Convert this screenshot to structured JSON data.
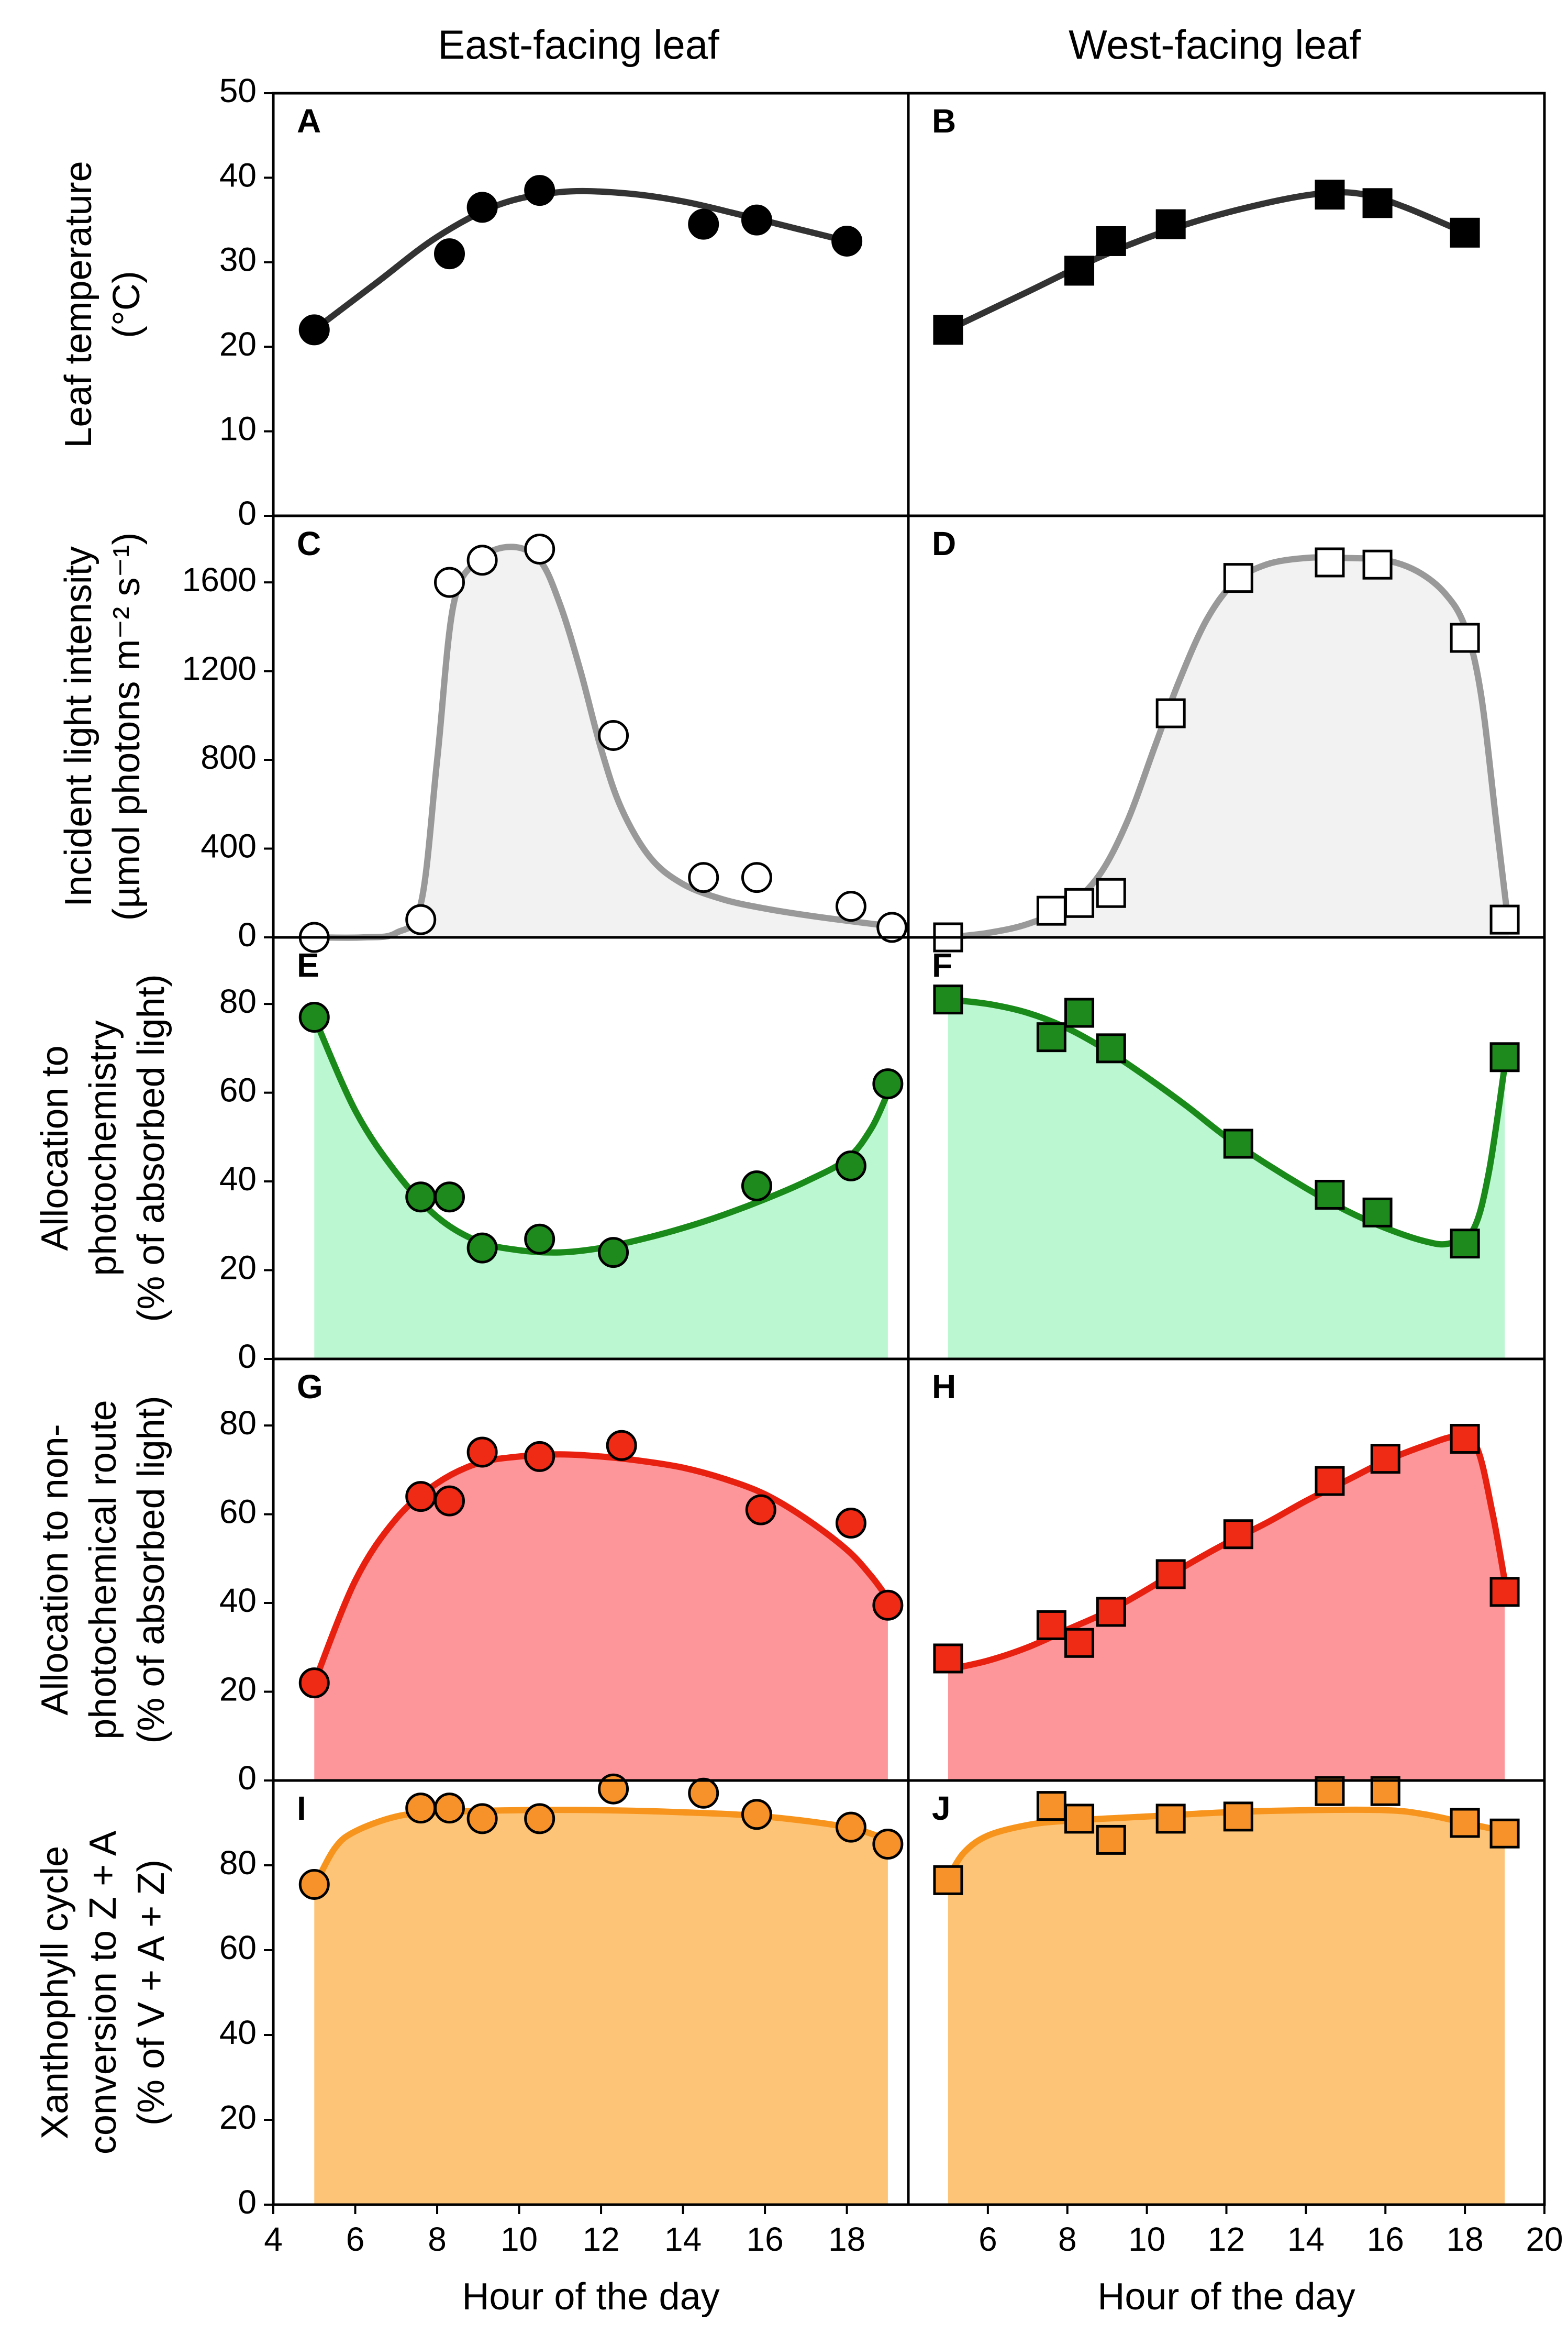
{
  "figure": {
    "col_titles": [
      "East-facing leaf",
      "West-facing leaf"
    ],
    "x_axis_label": "Hour of the day",
    "x_ticks_left": [
      "4",
      "6",
      "8",
      "10",
      "12",
      "14",
      "16",
      "18"
    ],
    "x_ticks_right": [
      "6",
      "8",
      "10",
      "12",
      "14",
      "16",
      "18",
      "20"
    ],
    "row_labels": [
      [
        "Leaf temperature",
        "(°C)"
      ],
      [
        "Incident light intensity",
        "(µmol photons m⁻² s⁻¹)"
      ],
      [
        "Allocation to",
        "photochemistry",
        "(% of absorbed light)"
      ],
      [
        "Allocation to non-",
        "photochemical route",
        "(% of absorbed light)"
      ],
      [
        "Xanthophyll cycle",
        "conversion to Z + A",
        "(% of V + A + Z)"
      ]
    ],
    "y_ticks": [
      [
        "0",
        "10",
        "20",
        "30",
        "40",
        "50"
      ],
      [
        "0",
        "400",
        "800",
        "1200",
        "1600"
      ],
      [
        "0",
        "20",
        "40",
        "60",
        "80"
      ],
      [
        "0",
        "20",
        "40",
        "60",
        "80"
      ],
      [
        "0",
        "20",
        "40",
        "60",
        "80"
      ]
    ]
  },
  "chart_data": [
    {
      "panel": "A",
      "type": "scatter",
      "column": "East-facing leaf",
      "title": "Leaf temperature (°C)",
      "xlabel": "Hour of the day",
      "ylabel": "Leaf temperature (°C)",
      "xlim": [
        4,
        19.5
      ],
      "ylim": [
        0,
        50
      ],
      "marker": "circle",
      "marker_color": "#000000",
      "line_color": "#333333",
      "fill": null,
      "x": [
        5.0,
        8.3,
        9.1,
        10.5,
        14.5,
        15.8,
        18.0
      ],
      "y": [
        22,
        31,
        36.5,
        38.5,
        34.5,
        35,
        32.5
      ],
      "fit_x": [
        5.0,
        6.5,
        8.0,
        9.5,
        11.0,
        12.5,
        14.0,
        15.5,
        17.0,
        18.0
      ],
      "fit_y": [
        22,
        27.5,
        33,
        36.8,
        38.3,
        38.2,
        37.2,
        35.5,
        33.7,
        32.5
      ]
    },
    {
      "panel": "B",
      "type": "scatter",
      "column": "West-facing leaf",
      "title": "Leaf temperature (°C)",
      "xlabel": "Hour of the day",
      "ylabel": "Leaf temperature (°C)",
      "xlim": [
        4,
        20
      ],
      "ylim": [
        0,
        50
      ],
      "marker": "square",
      "marker_color": "#000000",
      "line_color": "#333333",
      "fill": null,
      "x": [
        5.0,
        8.3,
        9.1,
        10.6,
        14.6,
        15.8,
        18.0
      ],
      "y": [
        22,
        29,
        32.5,
        34.5,
        38,
        37,
        33.5
      ],
      "fit_x": [
        5.0,
        7.0,
        9.0,
        11.0,
        13.0,
        14.5,
        15.5,
        16.5,
        18.0
      ],
      "fit_y": [
        22,
        26.5,
        31,
        34.5,
        37,
        38.2,
        38,
        36.5,
        33.5
      ]
    },
    {
      "panel": "C",
      "type": "area",
      "column": "East-facing leaf",
      "title": "Incident light intensity (µmol photons m-2 s-1)",
      "xlabel": "Hour of the day",
      "ylabel": "Incident light intensity",
      "xlim": [
        4,
        19.5
      ],
      "ylim": [
        0,
        1900
      ],
      "marker": "circle",
      "marker_color": "#ffffff",
      "line_color": "#999999",
      "fill": "#f2f2f2",
      "x": [
        5.0,
        7.6,
        8.3,
        9.1,
        10.5,
        12.3,
        14.5,
        15.8,
        18.1,
        19.1
      ],
      "y": [
        0,
        80,
        1600,
        1700,
        1750,
        910,
        270,
        270,
        140,
        45
      ],
      "fit_x": [
        5.0,
        6.2,
        7.0,
        7.6,
        8.0,
        8.4,
        9.0,
        9.8,
        10.5,
        11.0,
        11.5,
        12.0,
        12.5,
        13.2,
        14.0,
        15.0,
        16.0,
        17.0,
        18.0,
        19.1
      ],
      "fit_y": [
        0,
        0,
        20,
        150,
        800,
        1500,
        1700,
        1760,
        1700,
        1500,
        1200,
        850,
        580,
        360,
        240,
        170,
        130,
        100,
        75,
        50
      ]
    },
    {
      "panel": "D",
      "type": "area",
      "column": "West-facing leaf",
      "title": "Incident light intensity (µmol photons m-2 s-1)",
      "xlabel": "Hour of the day",
      "ylabel": "Incident light intensity",
      "xlim": [
        4,
        20
      ],
      "ylim": [
        0,
        1900
      ],
      "marker": "square",
      "marker_color": "#ffffff",
      "line_color": "#999999",
      "fill": "#f2f2f2",
      "x": [
        5.0,
        7.6,
        8.3,
        9.1,
        10.6,
        12.3,
        14.6,
        15.8,
        18.0,
        19.0
      ],
      "y": [
        0,
        120,
        155,
        200,
        1010,
        1620,
        1690,
        1680,
        1350,
        80
      ],
      "fit_x": [
        5.0,
        6.0,
        7.0,
        8.0,
        8.8,
        9.5,
        10.2,
        10.8,
        11.5,
        12.2,
        13.0,
        14.0,
        15.0,
        16.0,
        16.8,
        17.5,
        18.0,
        18.4,
        18.8,
        19.1
      ],
      "fit_y": [
        0,
        20,
        60,
        140,
        280,
        520,
        860,
        1150,
        1430,
        1600,
        1680,
        1710,
        1710,
        1700,
        1650,
        1550,
        1400,
        1100,
        500,
        50
      ]
    },
    {
      "panel": "E",
      "type": "area",
      "column": "East-facing leaf",
      "title": "Allocation to photochemistry (% of absorbed light)",
      "xlabel": "Hour of the day",
      "ylabel": "Allocation to photochemistry (%)",
      "xlim": [
        4,
        19.5
      ],
      "ylim": [
        0,
        95
      ],
      "marker": "circle",
      "marker_color": "#1e8a1e",
      "line_color": "#1a8a1a",
      "fill": "#bbf7d0",
      "x": [
        5.0,
        7.6,
        8.3,
        9.1,
        10.5,
        12.3,
        15.8,
        18.1,
        19.0
      ],
      "y": [
        77,
        36.5,
        36.5,
        25,
        27,
        24,
        39,
        43.5,
        62
      ],
      "fit_x": [
        5.0,
        6.0,
        7.0,
        8.0,
        9.0,
        10.0,
        11.0,
        12.0,
        13.0,
        14.0,
        15.0,
        16.0,
        17.0,
        18.0,
        18.6,
        19.0
      ],
      "fit_y": [
        77,
        56,
        42,
        32,
        26.5,
        24.5,
        24,
        25,
        27,
        29.5,
        32.5,
        36,
        40,
        45,
        52,
        60
      ]
    },
    {
      "panel": "F",
      "type": "area",
      "column": "West-facing leaf",
      "title": "Allocation to photochemistry (% of absorbed light)",
      "xlabel": "Hour of the day",
      "ylabel": "Allocation to photochemistry (%)",
      "xlim": [
        4,
        20
      ],
      "ylim": [
        0,
        95
      ],
      "marker": "square",
      "marker_color": "#1e8a1e",
      "line_color": "#1a8a1a",
      "fill": "#bbf7d0",
      "x": [
        5.0,
        7.6,
        8.3,
        9.1,
        12.3,
        14.6,
        15.8,
        18.0,
        19.0
      ],
      "y": [
        81,
        72.5,
        78,
        70,
        48.5,
        37,
        33,
        26,
        68
      ],
      "fit_x": [
        5.0,
        6.0,
        7.0,
        8.0,
        9.0,
        10.0,
        11.0,
        12.0,
        13.0,
        14.0,
        15.0,
        16.0,
        17.0,
        17.6,
        18.2,
        18.6,
        19.0
      ],
      "fit_y": [
        81,
        80,
        78,
        74.5,
        69.5,
        63.5,
        57,
        50,
        44,
        38.5,
        33.5,
        29.5,
        26.5,
        26,
        29,
        42,
        66
      ]
    },
    {
      "panel": "G",
      "type": "area",
      "column": "East-facing leaf",
      "title": "Allocation to non-photochemical route (% of absorbed light)",
      "xlabel": "Hour of the day",
      "ylabel": "Allocation to non-photochemical route (%)",
      "xlim": [
        4,
        19.5
      ],
      "ylim": [
        0,
        95
      ],
      "marker": "circle",
      "marker_color": "#ef2a15",
      "line_color": "#e8200f",
      "fill": "#fd969a",
      "x": [
        5.0,
        7.6,
        8.3,
        9.1,
        10.5,
        12.5,
        15.9,
        18.1,
        19.0
      ],
      "y": [
        22,
        64,
        63,
        74,
        73,
        75.5,
        61,
        58,
        39.5
      ],
      "fit_x": [
        5.0,
        6.0,
        7.0,
        8.0,
        9.0,
        10.0,
        11.0,
        12.0,
        13.0,
        14.0,
        15.0,
        16.0,
        17.0,
        18.0,
        18.6,
        19.0
      ],
      "fit_y": [
        22,
        45,
        59,
        67,
        71.5,
        73,
        73.5,
        73,
        72,
        70.5,
        68,
        64.5,
        59,
        52,
        46,
        41
      ]
    },
    {
      "panel": "H",
      "type": "area",
      "column": "West-facing leaf",
      "title": "Allocation to non-photochemical route (% of absorbed light)",
      "xlabel": "Hour of the day",
      "ylabel": "Allocation to non-photochemical route (%)",
      "xlim": [
        4,
        20
      ],
      "ylim": [
        0,
        95
      ],
      "marker": "square",
      "marker_color": "#ef2a15",
      "line_color": "#e8200f",
      "fill": "#fd969a",
      "x": [
        5.0,
        7.6,
        8.3,
        9.1,
        10.6,
        12.3,
        14.6,
        16.0,
        18.0,
        19.0
      ],
      "y": [
        27.5,
        35,
        31,
        38,
        46.5,
        55.5,
        67.5,
        72.5,
        77,
        42.5
      ],
      "fit_x": [
        5.0,
        6.0,
        7.0,
        8.0,
        9.0,
        10.0,
        11.0,
        12.0,
        13.0,
        14.0,
        15.0,
        16.0,
        17.0,
        17.8,
        18.3,
        18.7,
        19.0
      ],
      "fit_y": [
        25,
        27,
        30,
        34,
        38,
        43,
        48.5,
        53.5,
        58,
        63,
        67.5,
        72,
        75.5,
        77.5,
        75,
        60,
        45
      ]
    },
    {
      "panel": "I",
      "type": "area",
      "column": "East-facing leaf",
      "title": "Xanthophyll cycle conversion to Z + A (% of V + A + Z)",
      "xlabel": "Hour of the day",
      "ylabel": "Xanthophyll cycle conversion (%)",
      "xlim": [
        4,
        19.5
      ],
      "ylim": [
        0,
        100
      ],
      "marker": "circle",
      "marker_color": "#f7922b",
      "line_color": "#f7941d",
      "fill": "#fdc478",
      "x": [
        5.0,
        7.6,
        8.3,
        9.1,
        10.5,
        12.3,
        14.5,
        15.8,
        18.1,
        19.0
      ],
      "y": [
        75.5,
        93.5,
        93.5,
        91,
        91,
        98,
        97,
        92,
        89,
        85
      ],
      "fit_x": [
        5.0,
        5.5,
        6.0,
        7.0,
        8.0,
        10.0,
        12.0,
        14.0,
        16.0,
        18.0,
        19.0
      ],
      "fit_y": [
        75,
        84,
        88,
        91.5,
        92.5,
        93,
        93,
        92.5,
        91.5,
        89,
        86
      ]
    },
    {
      "panel": "J",
      "type": "area",
      "column": "West-facing leaf",
      "title": "Xanthophyll cycle conversion to Z + A (% of V + A + Z)",
      "xlabel": "Hour of the day",
      "ylabel": "Xanthophyll cycle conversion (%)",
      "xlim": [
        4,
        20
      ],
      "ylim": [
        0,
        100
      ],
      "marker": "square",
      "marker_color": "#f7922b",
      "line_color": "#f7941d",
      "fill": "#fdc478",
      "x": [
        5.0,
        7.6,
        8.3,
        9.1,
        10.6,
        12.3,
        14.6,
        16.0,
        18.0,
        19.0
      ],
      "y": [
        76.5,
        94,
        91,
        86,
        91,
        91.5,
        97.5,
        97.5,
        90,
        87.5
      ],
      "fit_x": [
        5.0,
        5.4,
        6.0,
        7.0,
        8.0,
        10.0,
        12.0,
        14.0,
        16.0,
        17.0,
        18.0,
        19.0
      ],
      "fit_y": [
        77,
        83,
        87,
        89.5,
        90.5,
        91.5,
        92.5,
        93,
        93,
        92,
        90,
        88
      ]
    }
  ]
}
